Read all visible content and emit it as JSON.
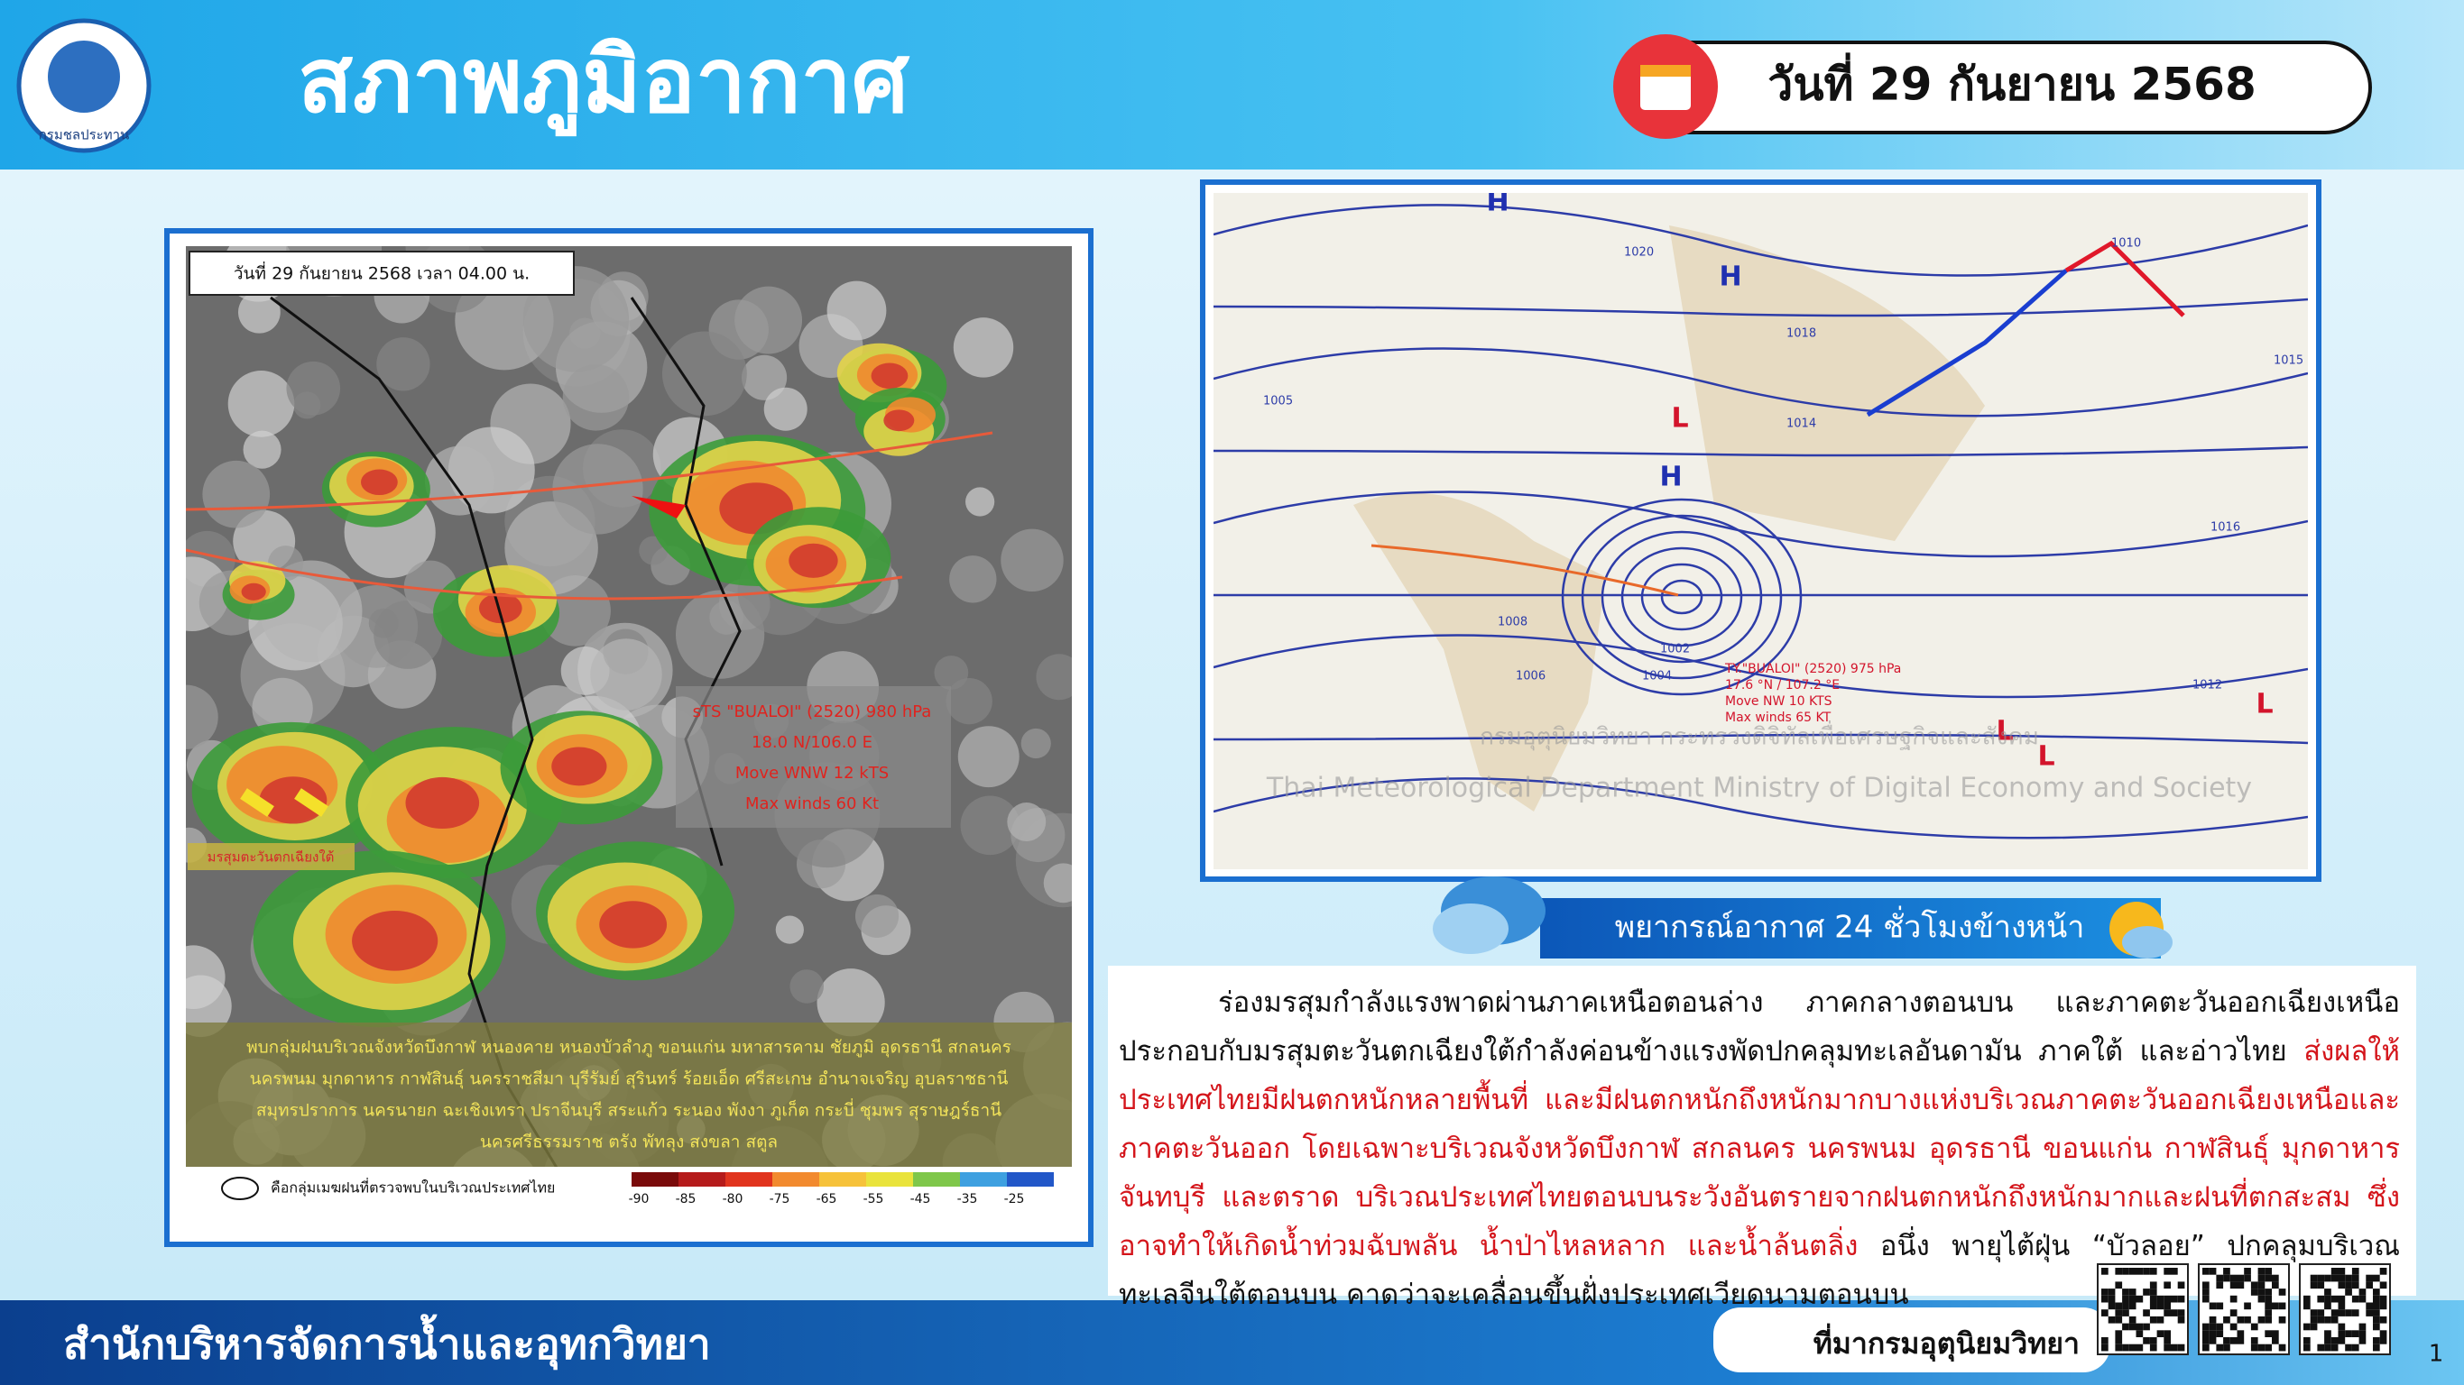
{
  "header": {
    "title": "สภาพภูมิอากาศ",
    "date": "วันที่ 29 กันยายน 2568"
  },
  "logo": {
    "label": "กรมชลประทาน"
  },
  "satellite": {
    "timestamp": "วันที่ 29 กันยายน 2568 เวลา 04.00 น.",
    "storm_label": [
      "sTS \"BUALOI\" (2520) 980 hPa",
      "18.0 N/106.0 E",
      "Move WNW 12 kTS",
      "Max winds 60 Kt"
    ],
    "monsoon_label": "มรสุมตะวันตกเฉียงใต้",
    "summary": [
      "พบกลุ่มฝนบริเวณจังหวัดบึงกาฬ หนองคาย หนองบัวลำภู ขอนแก่น มหาสารคาม ชัยภูมิ อุดรธานี สกลนคร",
      "นครพนม มุกดาหาร กาฬสินธุ์ นครราชสีมา บุรีรัมย์ สุรินทร์ ร้อยเอ็ด ศรีสะเกษ อำนาจเจริญ อุบลราชธานี",
      "สมุทรปราการ นครนายก ฉะเชิงเทรา ปราจีนบุรี สระแก้ว ระนอง พังงา ภูเก็ต กระบี่ ชุมพร สุราษฎร์ธานี",
      "นครศรีธรรมราช ตรัง พัทลุง สงขลา สตูล"
    ],
    "legend_note": "คือกลุ่มเมฆฝนที่ตรวจพบในบริเวณประเทศไทย",
    "scale": [
      -90,
      -85,
      -80,
      -75,
      -65,
      -55,
      -45,
      -35,
      -25
    ]
  },
  "weather_map": {
    "storm_label": [
      "TY.\"BUALOI\" (2520) 975 hPa",
      "17.6 °N / 107.2 °E",
      "Move NW 10 KTS",
      "Max winds 65 KT"
    ],
    "watermark_th": "กรมอุตุนิยมวิทยา กระทรวงดิจิทัลเพื่อเศรษฐกิจและสังคม",
    "watermark_en": "Thai Meteorological Department Ministry of Digital Economy and Society",
    "pressure_labels": [
      1020,
      1018,
      1014,
      1012,
      1010,
      1008,
      1006,
      1004,
      1002,
      1016,
      1015,
      1005
    ],
    "centers": [
      "H",
      "H",
      "H",
      "L",
      "L",
      "L",
      "L"
    ]
  },
  "forecast": {
    "heading": "พยากรณ์อากาศ 24 ชั่วโมงข้างหน้า",
    "paragraph": [
      {
        "text": "ร่องมรสุมกำลังแรงพาดผ่านภาคเหนือตอนล่าง ภาคกลางตอนบน และภาคตะวันออกเฉียงเหนือ ประกอบกับมรสุมตะวันตกเฉียงใต้กำลังค่อนข้างแรงพัดปกคลุมทะเลอันดามัน ภาคใต้ และอ่าวไทย",
        "emphasis": false
      },
      {
        "text": "ส่งผลให้ประเทศไทยมีฝนตกหนักหลายพื้นที่ และมีฝนตกหนักถึงหนักมากบางแห่งบริเวณภาคตะวันออกเฉียงเหนือและภาคตะวันออก โดยเฉพาะบริเวณจังหวัดบึงกาฬ สกลนคร นครพนม อุดรธานี ขอนแก่น กาฬสินธุ์ มุกดาหาร จันทบุรี และตราด บริเวณประเทศไทยตอนบนระวังอันตรายจากฝนตกหนักถึงหนักมากและฝนที่ตกสะสม ซึ่งอาจทำให้เกิดน้ำท่วมฉับพลัน น้ำป่าไหลหลาก และน้ำล้นตลิ่ง",
        "emphasis": true
      },
      {
        "text": "อนึ่ง พายุไต้ฝุ่น “บัวลอย” ปกคลุมบริเวณทะเลจีนใต้ตอนบน คาดว่าจะเคลื่อนขึ้นฝั่งประเทศเวียดนามตอนบน",
        "emphasis": false
      }
    ]
  },
  "footer": {
    "office": "สำนักบริหารจัดการน้ำและอุทกวิทยา",
    "source": "ที่มากรมอุตุนิยมวิทยา"
  },
  "page_number": 1
}
